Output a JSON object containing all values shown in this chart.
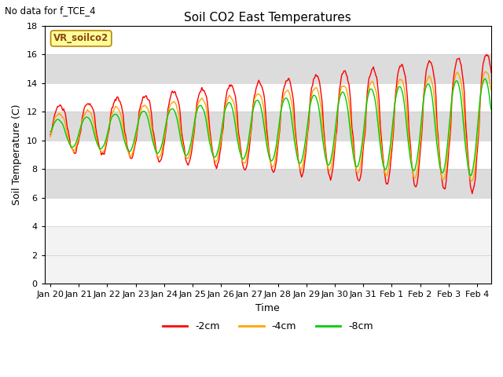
{
  "title": "Soil CO2 East Temperatures",
  "no_data_text": "No data for f_TCE_4",
  "legend_box_text": "VR_soilco2",
  "xlabel": "Time",
  "ylabel": "Soil Temperature (C)",
  "ylim": [
    0,
    18
  ],
  "line_colors": {
    "2cm": "#FF0000",
    "4cm": "#FFA500",
    "8cm": "#00CC00"
  },
  "legend_entries": [
    "-2cm",
    "-4cm",
    "-8cm"
  ],
  "legend_colors": [
    "#FF0000",
    "#FFA500",
    "#00CC00"
  ],
  "background_color": "#FFFFFF",
  "grid_band_color": "#DCDCDC",
  "title_fontsize": 11,
  "label_fontsize": 9,
  "tick_fontsize": 8,
  "line_width": 1.0,
  "xtick_labels": [
    "Jan 20",
    "Jan 21",
    "Jan 22",
    "Jan 23",
    "Jan 24",
    "Jan 25",
    "Jan 26",
    "Jan 27",
    "Jan 28",
    "Jan 29",
    "Jan 30",
    "Jan 31",
    "Feb 1",
    "Feb 2",
    "Feb 3",
    "Feb 4"
  ]
}
